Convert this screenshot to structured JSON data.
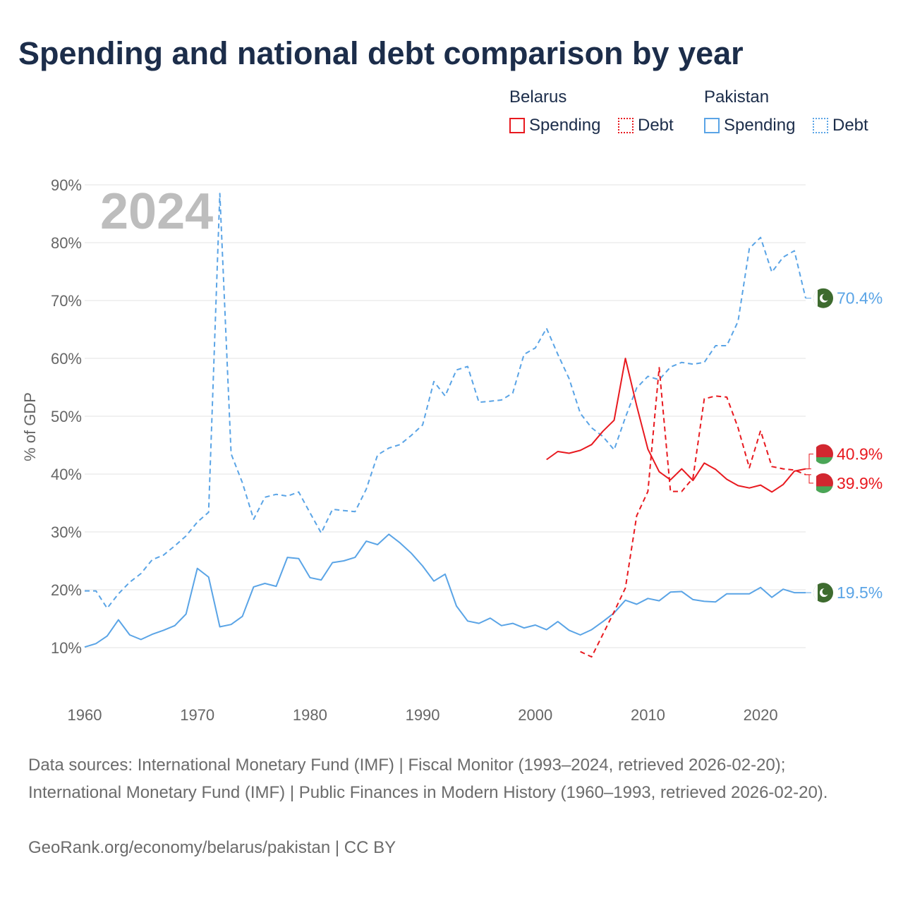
{
  "title": "Spending and national debt comparison by year",
  "legend": {
    "groups": [
      {
        "country": "Belarus",
        "spending_label": "Spending",
        "debt_label": "Debt",
        "color": "#e8191f"
      },
      {
        "country": "Pakistan",
        "spending_label": "Spending",
        "debt_label": "Debt",
        "color": "#5aa4e6"
      }
    ]
  },
  "year_watermark": "2024",
  "footer": {
    "sources": "Data sources: International Monetary Fund (IMF) | Fiscal Monitor (1993–2024, retrieved 2026-02-20); International Monetary Fund (IMF) | Public Finances in Modern History (1960–1993, retrieved 2026-02-20).",
    "credit": "GeoRank.org/economy/belarus/pakistan | CC BY"
  },
  "chart_data": {
    "type": "line",
    "ylabel": "% of GDP",
    "xlabel": "",
    "xlim": [
      1960,
      2024
    ],
    "ylim": [
      5,
      90
    ],
    "yticks": [
      10,
      20,
      30,
      40,
      50,
      60,
      70,
      80,
      90
    ],
    "ytick_labels": [
      "10%",
      "20%",
      "30%",
      "40%",
      "50%",
      "60%",
      "70%",
      "80%",
      "90%"
    ],
    "xticks": [
      1960,
      1970,
      1980,
      1990,
      2000,
      2010,
      2020
    ],
    "xtick_labels": [
      "1960",
      "1970",
      "1980",
      "1990",
      "2000",
      "2010",
      "2020"
    ],
    "grid": true,
    "series": [
      {
        "name": "Pakistan Debt",
        "country": "Pakistan",
        "metric": "Debt",
        "color": "#5aa4e6",
        "style": "dashed",
        "x": [
          1960,
          1961,
          1962,
          1963,
          1964,
          1965,
          1966,
          1967,
          1968,
          1969,
          1970,
          1971,
          1972,
          1973,
          1974,
          1975,
          1976,
          1977,
          1978,
          1979,
          1980,
          1981,
          1982,
          1983,
          1984,
          1985,
          1986,
          1987,
          1988,
          1989,
          1990,
          1991,
          1992,
          1993,
          1994,
          1995,
          1996,
          1997,
          1998,
          1999,
          2000,
          2001,
          2002,
          2003,
          2004,
          2005,
          2006,
          2007,
          2008,
          2009,
          2010,
          2011,
          2012,
          2013,
          2014,
          2015,
          2016,
          2017,
          2018,
          2019,
          2020,
          2021,
          2022,
          2023,
          2024
        ],
        "values": [
          19.8,
          19.8,
          16.8,
          19.3,
          21.3,
          22.8,
          25.2,
          26.0,
          27.6,
          29.3,
          31.7,
          33.4,
          88.5,
          43.5,
          38.5,
          32.2,
          36.0,
          36.5,
          36.2,
          36.9,
          33.3,
          29.8,
          33.9,
          33.7,
          33.5,
          37.4,
          43.3,
          44.5,
          45.1,
          46.7,
          48.5,
          56.0,
          53.5,
          58.0,
          58.6,
          52.4,
          52.6,
          52.8,
          54.0,
          60.7,
          61.8,
          65.2,
          60.7,
          56.5,
          50.5,
          48.0,
          46.5,
          44.2,
          49.8,
          54.9,
          56.9,
          56.3,
          58.5,
          59.3,
          59.0,
          59.3,
          62.2,
          62.2,
          66.4,
          79.0,
          80.9,
          74.9,
          77.5,
          78.6,
          70.4
        ]
      },
      {
        "name": "Pakistan Spending",
        "country": "Pakistan",
        "metric": "Spending",
        "color": "#5aa4e6",
        "style": "solid",
        "x": [
          1960,
          1961,
          1962,
          1963,
          1964,
          1965,
          1966,
          1967,
          1968,
          1969,
          1970,
          1971,
          1972,
          1973,
          1974,
          1975,
          1976,
          1977,
          1978,
          1979,
          1980,
          1981,
          1982,
          1983,
          1984,
          1985,
          1986,
          1987,
          1988,
          1989,
          1990,
          1991,
          1992,
          1993,
          1994,
          1995,
          1996,
          1997,
          1998,
          1999,
          2000,
          2001,
          2002,
          2003,
          2004,
          2005,
          2006,
          2007,
          2008,
          2009,
          2010,
          2011,
          2012,
          2013,
          2014,
          2015,
          2016,
          2017,
          2018,
          2019,
          2020,
          2021,
          2022,
          2023,
          2024
        ],
        "values": [
          10.1,
          10.7,
          12.0,
          14.8,
          12.2,
          11.4,
          12.3,
          13.0,
          13.8,
          15.8,
          23.7,
          22.2,
          13.6,
          14.0,
          15.4,
          20.5,
          21.1,
          20.6,
          25.6,
          25.4,
          22.1,
          21.7,
          24.7,
          25.0,
          25.6,
          28.4,
          27.8,
          29.6,
          28.1,
          26.3,
          24.1,
          21.5,
          22.7,
          17.2,
          14.6,
          14.2,
          15.1,
          13.8,
          14.2,
          13.4,
          13.9,
          13.1,
          14.5,
          13.0,
          12.2,
          13.1,
          14.5,
          16.0,
          18.2,
          17.5,
          18.5,
          18.1,
          19.6,
          19.7,
          18.3,
          18.0,
          17.9,
          19.3,
          19.3,
          19.3,
          20.4,
          18.7,
          20.1,
          19.5,
          19.5
        ]
      },
      {
        "name": "Belarus Spending",
        "country": "Belarus",
        "metric": "Spending",
        "color": "#e8191f",
        "style": "solid",
        "x": [
          2001,
          2002,
          2003,
          2004,
          2005,
          2006,
          2007,
          2008,
          2009,
          2010,
          2011,
          2012,
          2013,
          2014,
          2015,
          2016,
          2017,
          2018,
          2019,
          2020,
          2021,
          2022,
          2023,
          2024
        ],
        "values": [
          42.5,
          43.9,
          43.6,
          44.1,
          45.1,
          47.4,
          49.3,
          60.0,
          51.8,
          44.3,
          40.4,
          39.0,
          40.9,
          38.9,
          41.9,
          40.8,
          39.1,
          38.0,
          37.6,
          38.1,
          36.9,
          38.2,
          40.5,
          40.9
        ]
      },
      {
        "name": "Belarus Debt",
        "country": "Belarus",
        "metric": "Debt",
        "color": "#e8191f",
        "style": "dashed",
        "x": [
          2004,
          2005,
          2006,
          2007,
          2008,
          2009,
          2010,
          2011,
          2012,
          2013,
          2014,
          2015,
          2016,
          2017,
          2018,
          2019,
          2020,
          2021,
          2022,
          2023,
          2024
        ],
        "values": [
          9.3,
          8.4,
          12.3,
          16.2,
          20.3,
          32.8,
          37.0,
          58.4,
          37.0,
          37.0,
          39.3,
          53.0,
          53.5,
          53.3,
          48.0,
          41.1,
          47.5,
          41.3,
          40.9,
          40.7,
          39.9
        ]
      }
    ],
    "end_labels": [
      {
        "country": "Pakistan",
        "metric": "Debt",
        "text": "70.4%",
        "value": 70.4,
        "color": "#5aa4e6"
      },
      {
        "country": "Belarus",
        "metric": "Spending",
        "text": "40.9%",
        "value": 40.9,
        "color": "#e8191f"
      },
      {
        "country": "Belarus",
        "metric": "Debt",
        "text": "39.9%",
        "value": 39.9,
        "color": "#e8191f"
      },
      {
        "country": "Pakistan",
        "metric": "Spending",
        "text": "19.5%",
        "value": 19.5,
        "color": "#5aa4e6"
      }
    ]
  }
}
